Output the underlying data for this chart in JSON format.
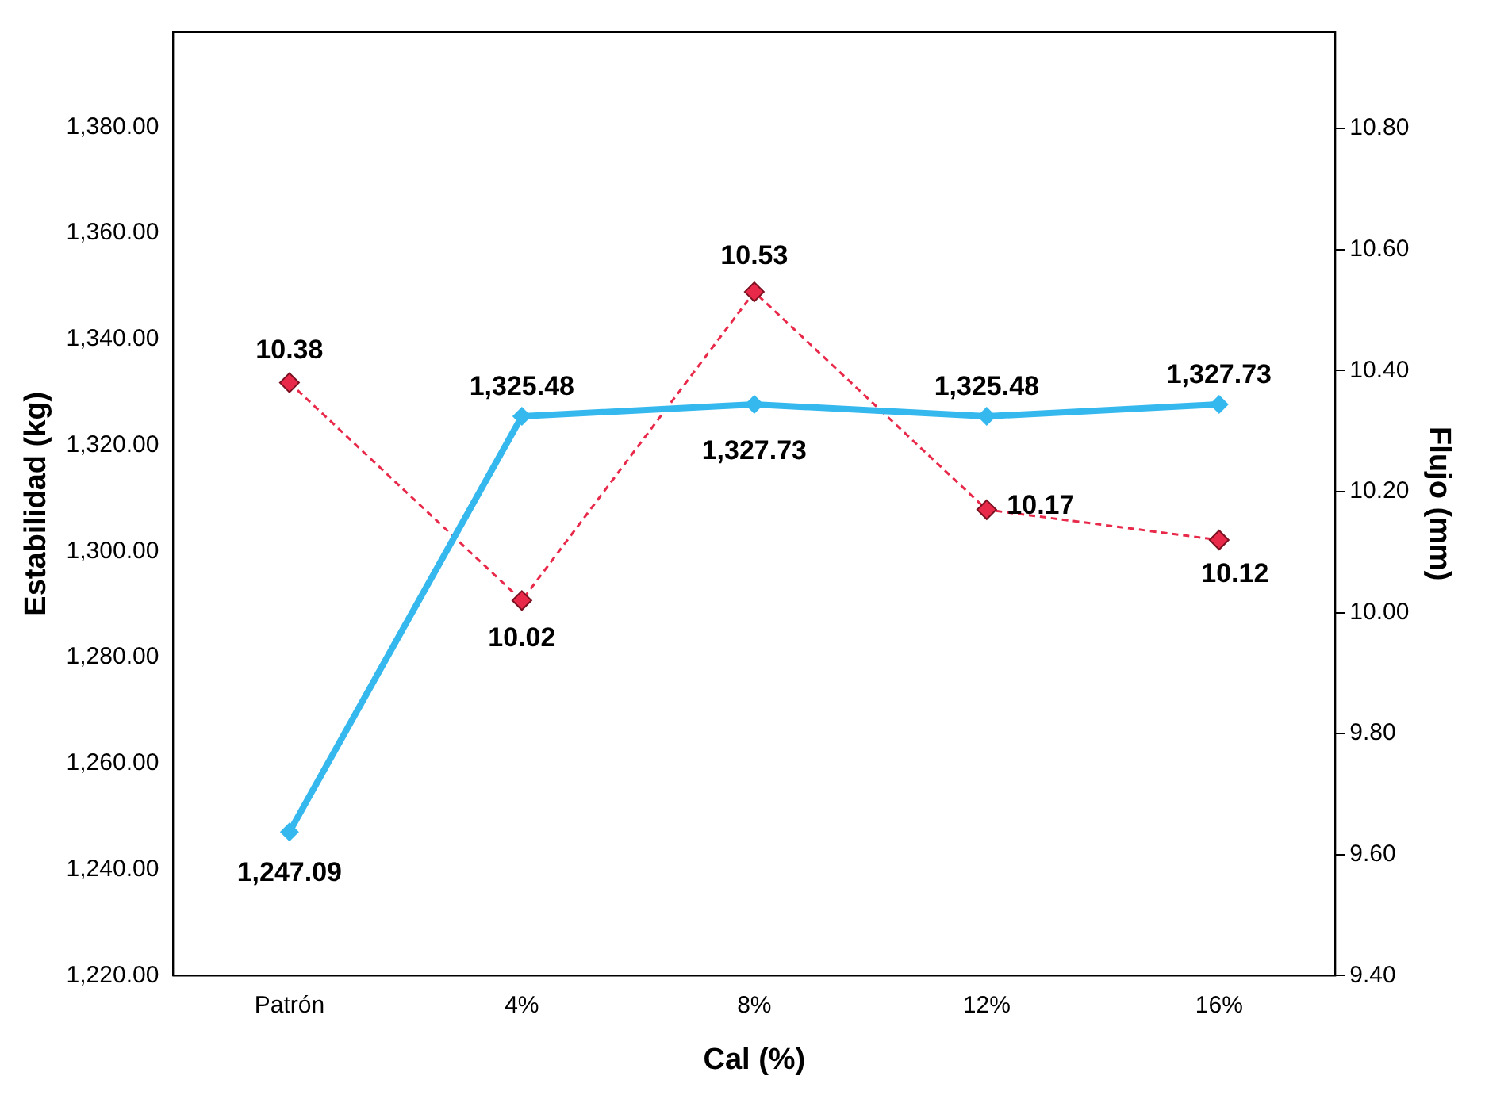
{
  "chart_data": {
    "type": "line",
    "xlabel": "Cal (%)",
    "ylabel": "Estabilidad (kg)",
    "y2label": "Flujo (mm)",
    "categories": [
      "Patrón",
      "4%",
      "8%",
      "12%",
      "16%"
    ],
    "series": [
      {
        "color": "#35b8ee",
        "values": [
          1247.09,
          1325.48,
          1327.73,
          1325.48,
          1327.73
        ],
        "value_labels": [
          "1,247.09",
          "1,325.48",
          "1,327.73",
          "1,325.48",
          "1,327.73"
        ],
        "marker": "diamond",
        "line_style": "solid"
      },
      {
        "axis": "y2",
        "color": "#e8294a",
        "values": [
          10.38,
          10.02,
          10.53,
          10.17,
          10.12
        ],
        "value_labels": [
          "10.38",
          "10.02",
          "10.53",
          "10.17",
          "10.12"
        ],
        "marker": "diamond",
        "line_style": "dashed"
      }
    ],
    "ylim": [
      1220,
      1398
    ],
    "yticks": [
      {
        "value": 1220,
        "label": "1,220.00"
      },
      {
        "value": 1240,
        "label": "1,240.00"
      },
      {
        "value": 1260,
        "label": "1,260.00"
      },
      {
        "value": 1280,
        "label": "1,280.00"
      },
      {
        "value": 1300,
        "label": "1,300.00"
      },
      {
        "value": 1320,
        "label": "1,320.00"
      },
      {
        "value": 1340,
        "label": "1,340.00"
      },
      {
        "value": 1360,
        "label": "1,360.00"
      },
      {
        "value": 1380,
        "label": "1,380.00"
      }
    ],
    "y2lim": [
      9.4,
      10.96
    ],
    "y2ticks": [
      {
        "value": 9.4,
        "label": "9.40"
      },
      {
        "value": 9.6,
        "label": "9.60"
      },
      {
        "value": 9.8,
        "label": "9.80"
      },
      {
        "value": 10,
        "label": "10.00"
      },
      {
        "value": 10.2,
        "label": "10.20"
      },
      {
        "value": 10.4,
        "label": "10.40"
      },
      {
        "value": 10.6,
        "label": "10.60"
      },
      {
        "value": 10.8,
        "label": "10.80"
      }
    ],
    "grid": false,
    "legend": false
  }
}
